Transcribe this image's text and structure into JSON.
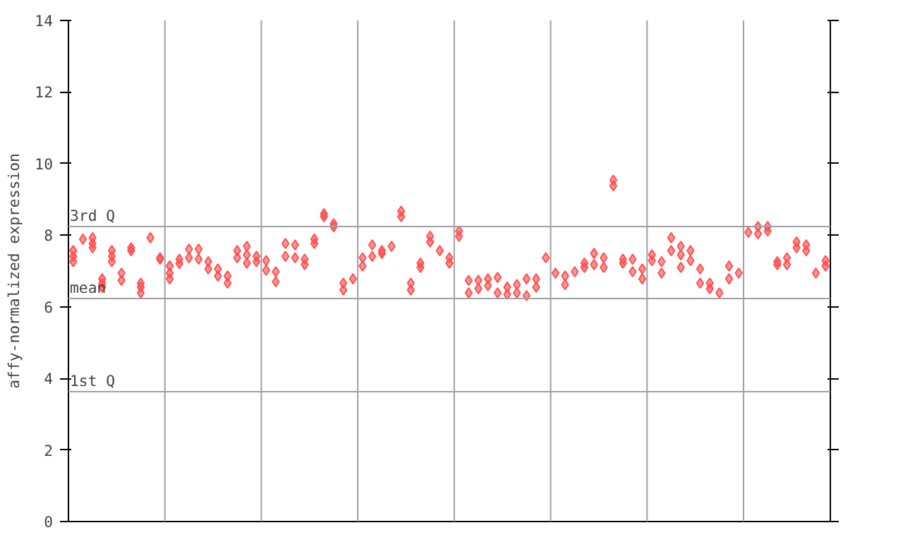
{
  "chart_data": {
    "type": "scatter",
    "ylabel": "affy-normalized expression",
    "categories": [
      null,
      null,
      null,
      null,
      null,
      null,
      null,
      null,
      null,
      null,
      null,
      null,
      null,
      null,
      null,
      null,
      null,
      null,
      null,
      null,
      null,
      null,
      null,
      null,
      null,
      null,
      null,
      null,
      null,
      null,
      null,
      null,
      null,
      null,
      null,
      null,
      null,
      null,
      null,
      null,
      null,
      null,
      null,
      null,
      null,
      null,
      null,
      null,
      null,
      null,
      null,
      null,
      null,
      null,
      null,
      null,
      null,
      null,
      null,
      null,
      null,
      null,
      null,
      null,
      null,
      null,
      null,
      null,
      null,
      null,
      null,
      null,
      null,
      null,
      null,
      null,
      null,
      null,
      null
    ],
    "series": [
      {
        "color": "#ff5050",
        "values": [
          7.57,
          7.89,
          7.93,
          6.78,
          7.57,
          6.94,
          7.65,
          6.66,
          7.93,
          7.37,
          7.14,
          7.33,
          7.61,
          7.61,
          7.26,
          7.06,
          6.86,
          7.57,
          7.69,
          7.41,
          7.29,
          6.98,
          7.77,
          7.73,
          7.33,
          7.89,
          8.6,
          8.32,
          6.66,
          6.78,
          7.37,
          7.73,
          7.57,
          7.69,
          8.67,
          6.66,
          7.22,
          7.97,
          7.57,
          7.37,
          8.12,
          6.74,
          6.74,
          6.78,
          6.82,
          6.55,
          6.62,
          6.78,
          6.78,
          7.37,
          6.94,
          6.86,
          6.98,
          7.22,
          7.49,
          7.37,
          9.54,
          7.33,
          7.33,
          7.06,
          7.45,
          7.26,
          7.93,
          7.69,
          7.57,
          7.06,
          6.66,
          6.39,
          7.14,
          6.94,
          8.08,
          8.24,
          8.24,
          7.26,
          7.37,
          7.81,
          7.73,
          6.94,
          7.29
        ]
      },
      {
        "color": "#ff5050",
        "values": [
          7.41,
          null,
          7.77,
          6.66,
          7.41,
          6.74,
          7.57,
          6.55,
          null,
          7.33,
          6.94,
          7.21,
          7.37,
          7.33,
          7.06,
          6.86,
          6.66,
          7.37,
          7.45,
          7.26,
          7.02,
          6.7,
          7.41,
          7.37,
          7.18,
          7.77,
          8.52,
          8.24,
          6.47,
          null,
          7.14,
          7.41,
          7.49,
          null,
          8.52,
          6.47,
          7.1,
          7.81,
          null,
          7.22,
          7.97,
          6.39,
          6.51,
          6.59,
          6.39,
          6.35,
          6.39,
          6.31,
          6.55,
          null,
          null,
          6.62,
          null,
          7.1,
          7.18,
          7.1,
          9.38,
          7.22,
          6.98,
          6.78,
          7.29,
          6.94,
          7.57,
          7.45,
          7.29,
          6.66,
          6.51,
          null,
          6.78,
          null,
          null,
          8.04,
          8.12,
          7.18,
          7.18,
          7.65,
          7.57,
          null,
          7.14
        ]
      },
      {
        "color": "#ff5050",
        "values": [
          7.26,
          null,
          7.65,
          6.55,
          7.26,
          null,
          null,
          6.39,
          null,
          null,
          6.78,
          null,
          null,
          null,
          null,
          null,
          null,
          null,
          7.22,
          null,
          null,
          null,
          null,
          null,
          null,
          null,
          null,
          null,
          null,
          null,
          null,
          null,
          null,
          null,
          null,
          null,
          null,
          null,
          null,
          null,
          null,
          null,
          null,
          null,
          null,
          null,
          null,
          null,
          null,
          null,
          null,
          null,
          null,
          null,
          null,
          null,
          null,
          null,
          null,
          null,
          null,
          null,
          null,
          7.1,
          null,
          null,
          null,
          null,
          null,
          null,
          null,
          null,
          null,
          null,
          null,
          null,
          null,
          null,
          null
        ]
      }
    ],
    "ylim": [
      0,
      14
    ],
    "yticks": [
      0,
      2,
      4,
      6,
      8,
      10,
      12,
      14
    ],
    "tick_labels": "y",
    "grid": "x",
    "marker": "diamond",
    "ref_lines": [
      {
        "axis": "y",
        "value": 8.24,
        "label": "3rd Q",
        "color": "#a0a0a0"
      },
      {
        "axis": "y",
        "value": 6.23,
        "label": "mean",
        "color": "#a0a0a0"
      },
      {
        "axis": "y",
        "value": 3.63,
        "label": "1st Q",
        "color": "#a0a0a0"
      }
    ]
  }
}
